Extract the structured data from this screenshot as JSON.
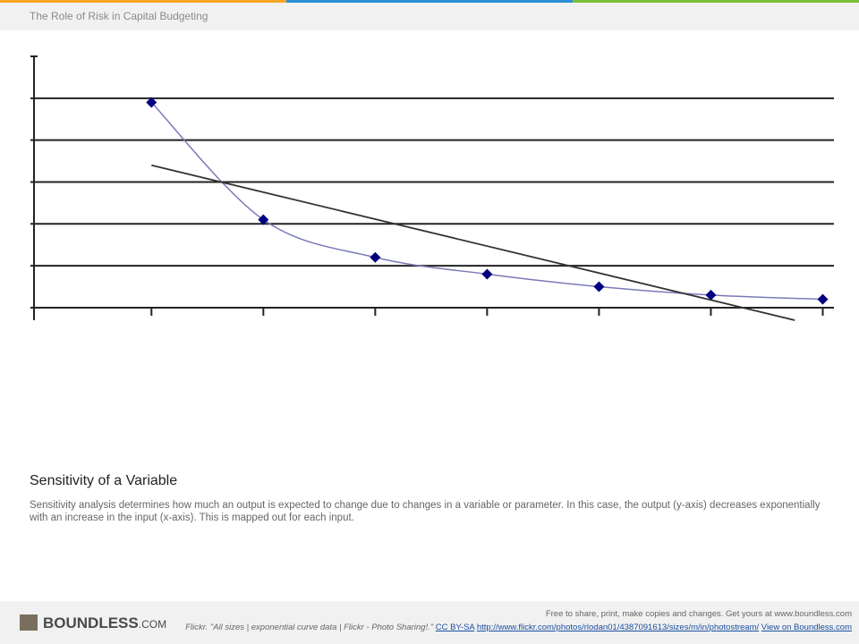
{
  "header": {
    "title": "The Role of Risk in Capital Budgeting"
  },
  "chart_data": {
    "type": "line",
    "xlim": [
      -0.05,
      7.1
    ],
    "xticks": [
      1,
      2,
      3,
      4,
      5,
      6,
      7
    ],
    "ylim": [
      -0.3,
      6
    ],
    "yticks": [
      0,
      1,
      2,
      3,
      4,
      5,
      6
    ],
    "grid": true,
    "series": [
      {
        "color": "#000080",
        "line_color": "#7a7ab8",
        "smooth": true,
        "marker": "diamond",
        "x": [
          1,
          2,
          3,
          4,
          5,
          6,
          7
        ],
        "values": [
          4.9,
          2.1,
          1.2,
          0.8,
          0.5,
          0.3,
          0.2
        ]
      },
      {
        "color": "#333333",
        "smooth": false,
        "marker": "none",
        "x": [
          1,
          6.75
        ],
        "values": [
          3.4,
          -0.3
        ]
      }
    ]
  },
  "caption": {
    "title": "Sensitivity of a Variable",
    "text": "Sensitivity analysis determines how much an output is expected to change due to changes in a variable or parameter. In this case, the output (y-axis) decreases exponentially with an increase in the input (x-axis). This is mapped out for each input."
  },
  "footer": {
    "logo": "BOUNDLESS",
    "logo_suffix": ".COM",
    "notice": "Free to share, print, make copies and changes. Get yours at www.boundless.com",
    "source": "Flickr. \"All sizes | exponential curve data | Flickr - Photo Sharing!.\"",
    "license": "CC BY-SA",
    "url": "http://www.flickr.com/photos/rlodan01/4387091613/sizes/m/in/photostream/",
    "view": "View on Boundless.com"
  }
}
